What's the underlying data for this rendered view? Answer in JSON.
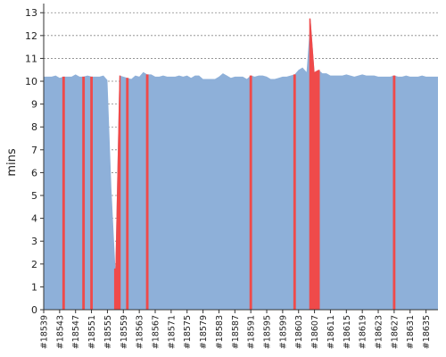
{
  "chart_data": {
    "type": "area",
    "ylabel": "mins",
    "ylim": [
      0,
      13.4
    ],
    "yticks": [
      "0",
      "1",
      "2",
      "3",
      "4",
      "5",
      "6",
      "7",
      "8",
      "9",
      "10",
      "11",
      "12",
      "13"
    ],
    "grid": true,
    "colors": {
      "area": "#8eb0d9",
      "fail": "#ef4a4a",
      "grid": "#888888",
      "axis": "#333333"
    },
    "x_tick_labels": [
      "#18539",
      "#18543",
      "#18547",
      "#18551",
      "#18555",
      "#18559",
      "#18563",
      "#18567",
      "#18571",
      "#18575",
      "#18579",
      "#18583",
      "#18587",
      "#18591",
      "#18595",
      "#18599",
      "#18603",
      "#18607",
      "#18611",
      "#18615",
      "#18619",
      "#18623",
      "#18627",
      "#18631",
      "#18635"
    ],
    "x_first_build": 18539,
    "x_last_build": 18638,
    "series": [
      {
        "x": [
          18539,
          18540,
          18541,
          18542,
          18543,
          18544,
          18545,
          18546,
          18547,
          18548,
          18549,
          18550,
          18551,
          18552,
          18553,
          18554,
          18555,
          18556,
          18557,
          18558,
          18559,
          18560,
          18561,
          18562,
          18563,
          18564,
          18565,
          18566,
          18567,
          18568,
          18569,
          18570,
          18571,
          18572,
          18573,
          18574,
          18575,
          18576,
          18577,
          18578,
          18579,
          18580,
          18581,
          18582,
          18583,
          18584,
          18585,
          18586,
          18587,
          18588,
          18589,
          18590,
          18591,
          18592,
          18593,
          18594,
          18595,
          18596,
          18597,
          18598,
          18599,
          18600,
          18601,
          18602,
          18603,
          18604,
          18605,
          18606,
          18607,
          18608,
          18609,
          18610,
          18611,
          18612,
          18613,
          18614,
          18615,
          18616,
          18617,
          18618,
          18619,
          18620,
          18621,
          18622,
          18623,
          18624,
          18625,
          18626,
          18627,
          18628,
          18629,
          18630,
          18631,
          18632,
          18633,
          18634,
          18635,
          18636,
          18637,
          18638
        ],
        "y": [
          10.2,
          10.2,
          10.2,
          10.25,
          10.15,
          10.2,
          10.2,
          10.2,
          10.3,
          10.2,
          10.2,
          10.25,
          10.2,
          10.2,
          10.2,
          10.25,
          10.05,
          5.3,
          1.8,
          10.25,
          10.2,
          10.15,
          10.1,
          10.25,
          10.2,
          10.4,
          10.3,
          10.3,
          10.2,
          10.2,
          10.25,
          10.2,
          10.2,
          10.2,
          10.25,
          10.2,
          10.25,
          10.15,
          10.25,
          10.25,
          10.1,
          10.1,
          10.1,
          10.1,
          10.2,
          10.35,
          10.25,
          10.15,
          10.2,
          10.2,
          10.2,
          10.1,
          10.25,
          10.2,
          10.25,
          10.25,
          10.2,
          10.1,
          10.1,
          10.15,
          10.2,
          10.2,
          10.25,
          10.3,
          10.5,
          10.6,
          10.4,
          12.75,
          10.4,
          10.5,
          10.35,
          10.35,
          10.25,
          10.25,
          10.25,
          10.25,
          10.3,
          10.25,
          10.2,
          10.25,
          10.3,
          10.25,
          10.25,
          10.25,
          10.2,
          10.2,
          10.2,
          10.2,
          10.25,
          10.2,
          10.2,
          10.25,
          10.2,
          10.2,
          10.2,
          10.25,
          10.2,
          10.2,
          10.2,
          10.2
        ],
        "failed": [
          18544,
          18549,
          18551,
          18557,
          18558,
          18560,
          18565,
          18591,
          18602,
          18606,
          18607,
          18608,
          18627
        ]
      }
    ]
  }
}
